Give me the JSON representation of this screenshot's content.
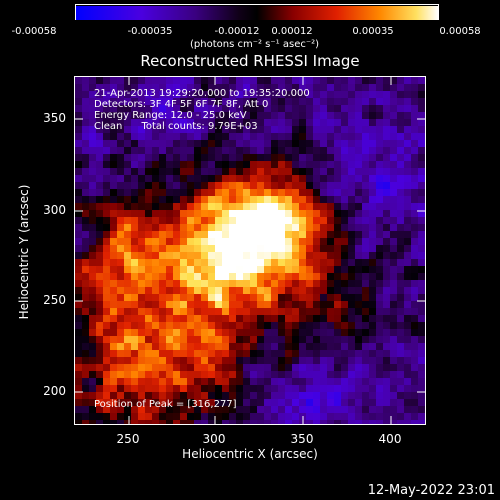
{
  "colorbar": {
    "tick_labels": [
      "-0.00058",
      "-0.00035",
      "-0.00012",
      "0.00012",
      "0.00035",
      "0.00058"
    ],
    "units": "(photons cm⁻² s⁻¹ asec⁻²)",
    "range": [
      -0.00058,
      0.00058
    ],
    "colors": [
      "#0000ff",
      "#6a00c8",
      "#2a0050",
      "#000000",
      "#b00000",
      "#ff5a00",
      "#ffe050",
      "#ffffff"
    ]
  },
  "title": "Reconstructed RHESSI Image",
  "info": {
    "time_range": "21-Apr-2013 19:29:20.000 to 19:35:20.000",
    "detectors": "Detectors: 3F 4F 5F 6F 7F 8F, Att 0",
    "energy": "Energy Range: 12.0 - 25.0 keV",
    "clean": "Clean      Total counts: 9.79E+03"
  },
  "peak": "Position of Peak = [316,277]",
  "axes": {
    "xlabel": "Heliocentric X (arcsec)",
    "ylabel": "Heliocentric Y (arcsec)",
    "xticks": [
      "250",
      "300",
      "350",
      "400"
    ],
    "yticks": [
      "350",
      "300",
      "250",
      "200"
    ],
    "xlim": [
      220,
      412
    ],
    "ylim": [
      182,
      372
    ]
  },
  "timestamp": "12-May-2022 23:01"
}
